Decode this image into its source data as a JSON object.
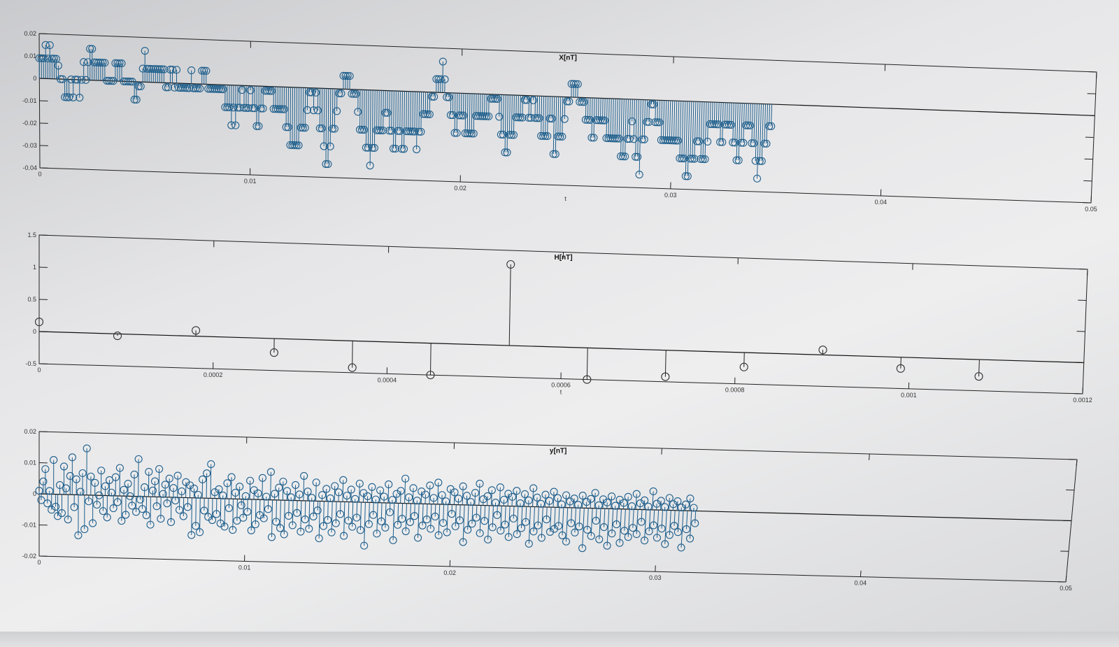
{
  "chart_data": [
    {
      "id": "x",
      "type": "stem",
      "title": "X[nT]",
      "xlabel": "t",
      "ylabel": "",
      "xlim": [
        0,
        0.05
      ],
      "ylim": [
        -0.04,
        0.02
      ],
      "xticks": [
        "0",
        "0.01",
        "0.02",
        "0.03",
        "0.04",
        "0.05"
      ],
      "yticks": [
        "0.02",
        "0.01",
        "0",
        "-0.01",
        "-0.02",
        "-0.03",
        "-0.04"
      ],
      "marker": "circle",
      "color": "#1f5f8c",
      "x_start": 0,
      "x_step": 0.0001,
      "values": [
        0.009,
        0.009,
        0.009,
        0.015,
        0.009,
        0.015,
        0.009,
        0.009,
        0.009,
        0.006,
        0.0,
        0.0,
        -0.008,
        -0.008,
        -0.008,
        0.0,
        -0.008,
        0.0,
        0.0,
        -0.008,
        0.0,
        0.008,
        0.0,
        0.008,
        0.014,
        0.014,
        0.008,
        0.008,
        0.008,
        0.008,
        0.008,
        0.008,
        0.0,
        0.0,
        0.0,
        0.0,
        0.008,
        0.008,
        0.008,
        0.008,
        0.0,
        0.0,
        0.0,
        0.0,
        0.0,
        -0.008,
        -0.008,
        -0.002,
        -0.002,
        0.006,
        0.014,
        0.006,
        0.006,
        0.006,
        0.006,
        0.006,
        0.006,
        0.006,
        0.006,
        0.006,
        -0.002,
        -0.002,
        0.006,
        0.006,
        -0.002,
        0.006,
        -0.002,
        -0.002,
        -0.002,
        -0.002,
        -0.002,
        -0.002,
        0.006,
        -0.002,
        -0.002,
        -0.002,
        -0.002,
        0.006,
        0.006,
        0.006,
        -0.002,
        -0.002,
        -0.002,
        -0.002,
        -0.002,
        -0.002,
        -0.002,
        -0.002,
        -0.01,
        -0.01,
        -0.01,
        -0.018,
        -0.01,
        -0.018,
        -0.01,
        -0.01,
        -0.002,
        -0.01,
        -0.01,
        -0.01,
        -0.002,
        -0.01,
        -0.01,
        -0.018,
        -0.018,
        -0.01,
        -0.01,
        -0.002,
        -0.002,
        -0.002,
        -0.002,
        -0.01,
        -0.01,
        -0.01,
        -0.01,
        -0.01,
        -0.01,
        -0.018,
        -0.018,
        -0.026,
        -0.026,
        -0.026,
        -0.026,
        -0.026,
        -0.018,
        -0.018,
        -0.018,
        -0.01,
        -0.002,
        -0.002,
        -0.01,
        -0.002,
        -0.01,
        -0.018,
        -0.018,
        -0.026,
        -0.034,
        -0.034,
        -0.026,
        -0.018,
        -0.018,
        -0.01,
        -0.002,
        -0.002,
        0.006,
        0.006,
        0.006,
        0.006,
        -0.002,
        -0.002,
        -0.002,
        -0.01,
        -0.018,
        -0.018,
        -0.018,
        -0.026,
        -0.026,
        -0.034,
        -0.026,
        -0.026,
        -0.018,
        -0.018,
        -0.018,
        -0.018,
        -0.01,
        -0.01,
        -0.018,
        -0.018,
        -0.026,
        -0.026,
        -0.018,
        -0.018,
        -0.026,
        -0.026,
        -0.018,
        -0.018,
        -0.018,
        -0.018,
        -0.018,
        -0.026,
        -0.018,
        -0.018,
        -0.01,
        -0.01,
        -0.01,
        -0.01,
        -0.002,
        -0.002,
        0.006,
        0.006,
        0.006,
        0.014,
        0.006,
        -0.002,
        -0.002,
        -0.01,
        -0.01,
        -0.018,
        -0.018,
        -0.01,
        -0.01,
        -0.01,
        -0.018,
        -0.018,
        -0.018,
        -0.018,
        -0.018,
        -0.01,
        -0.01,
        -0.01,
        -0.01,
        -0.01,
        -0.01,
        -0.01,
        -0.002,
        -0.002,
        -0.002,
        -0.002,
        -0.01,
        -0.018,
        -0.018,
        -0.026,
        -0.026,
        -0.018,
        -0.018,
        -0.018,
        -0.01,
        -0.01,
        -0.01,
        -0.01,
        -0.002,
        -0.002,
        -0.01,
        -0.01,
        -0.002,
        -0.01,
        -0.01,
        -0.01,
        -0.018,
        -0.018,
        -0.018,
        -0.018,
        -0.01,
        -0.01,
        -0.026,
        -0.026,
        -0.018,
        -0.018,
        -0.018,
        -0.01,
        -0.002,
        -0.002,
        0.006,
        0.006,
        0.006,
        0.006,
        -0.002,
        -0.002,
        -0.002,
        -0.01,
        -0.01,
        -0.01,
        -0.018,
        -0.018,
        -0.01,
        -0.01,
        -0.01,
        -0.01,
        -0.01,
        -0.018,
        -0.018,
        -0.018,
        -0.018,
        -0.018,
        -0.018,
        -0.018,
        -0.026,
        -0.026,
        -0.026,
        -0.018,
        -0.018,
        -0.01,
        -0.018,
        -0.026,
        -0.026,
        -0.034,
        -0.018,
        -0.018,
        -0.01,
        -0.01,
        -0.002,
        -0.002,
        -0.01,
        -0.01,
        -0.01,
        -0.018,
        -0.018,
        -0.018,
        -0.018,
        -0.018,
        -0.018,
        -0.018,
        -0.018,
        -0.018,
        -0.026,
        -0.026,
        -0.026,
        -0.034,
        -0.034,
        -0.026,
        -0.026,
        -0.026,
        -0.018,
        -0.018,
        -0.026,
        -0.026,
        -0.026,
        -0.018,
        -0.01,
        -0.01,
        -0.01,
        -0.01,
        -0.01,
        -0.018,
        -0.018,
        -0.01,
        -0.01,
        -0.01,
        -0.01,
        -0.018,
        -0.018,
        -0.026,
        -0.026,
        -0.018,
        -0.018,
        -0.01,
        -0.01,
        -0.01,
        -0.018,
        -0.018,
        -0.026,
        -0.034,
        -0.026,
        -0.026,
        -0.018,
        -0.018,
        -0.01,
        -0.01
      ]
    },
    {
      "id": "h",
      "type": "stem",
      "title": "H[nT]",
      "xlabel": "t",
      "ylabel": "",
      "xlim": [
        0,
        0.0012
      ],
      "ylim": [
        -0.5,
        1.5
      ],
      "xticks": [
        "0",
        "0.0002",
        "0.0004",
        "0.0006",
        "0.0008",
        "0.001",
        "0.0012"
      ],
      "yticks": [
        "1.5",
        "1",
        "0.5",
        "0",
        "-0.5"
      ],
      "marker": "circle",
      "color": "#333333",
      "x": [
        0.0,
        9e-05,
        0.00018,
        0.00027,
        0.00036,
        0.00045,
        0.00054,
        0.00063,
        0.00072,
        0.00081,
        0.0009,
        0.00099,
        0.00108
      ],
      "values": [
        0.15,
        -0.03,
        0.09,
        -0.22,
        -0.42,
        -0.6,
        1.28,
        -0.62,
        -0.42,
        -0.23,
        0.08,
        -0.18,
        -0.27
      ]
    },
    {
      "id": "y",
      "type": "stem",
      "title": "y[nT]",
      "xlabel": "",
      "ylabel": "",
      "xlim": [
        0,
        0.05
      ],
      "ylim": [
        -0.02,
        0.02
      ],
      "xticks": [
        "0",
        "0.01",
        "0.02",
        "0.03",
        "0.04",
        "0.05"
      ],
      "yticks": [
        "0.02",
        "0.01",
        "0",
        "-0.01",
        "-0.02"
      ],
      "marker": "circle",
      "color": "#1f5f8c",
      "x_start": 0,
      "x_step": 0.0001,
      "values": [
        0.001,
        -0.002,
        0.004,
        0.008,
        -0.003,
        0.001,
        -0.005,
        0.011,
        -0.004,
        -0.007,
        0.003,
        -0.006,
        0.009,
        0.002,
        -0.008,
        0.006,
        0.012,
        -0.004,
        0.005,
        -0.013,
        0.001,
        0.007,
        -0.011,
        0.015,
        -0.002,
        0.006,
        -0.009,
        0.004,
        -0.003,
        0.0,
        0.008,
        -0.005,
        0.003,
        -0.007,
        0.005,
        0.001,
        -0.004,
        0.006,
        -0.002,
        0.009,
        -0.008,
        0.002,
        -0.006,
        0.004,
        0.0,
        -0.003,
        0.007,
        -0.005,
        0.012,
        -0.001,
        -0.004,
        0.003,
        -0.006,
        0.008,
        -0.009,
        0.002,
        0.005,
        -0.003,
        0.009,
        -0.007,
        0.001,
        0.004,
        -0.002,
        0.006,
        -0.008,
        0.003,
        -0.001,
        0.007,
        -0.004,
        0.002,
        -0.006,
        0.005,
        -0.003,
        0.004,
        -0.012,
        0.003,
        -0.009,
        0.001,
        -0.011,
        0.006,
        -0.004,
        0.008,
        -0.006,
        0.011,
        -0.007,
        0.002,
        -0.005,
        0.003,
        -0.008,
        0.001,
        -0.009,
        0.005,
        -0.003,
        0.007,
        -0.01,
        0.002,
        -0.007,
        0.004,
        -0.002,
        -0.006,
        0.001,
        -0.004,
        0.006,
        -0.01,
        0.003,
        -0.008,
        0.002,
        -0.005,
        0.007,
        -0.006,
        0.001,
        -0.003,
        0.009,
        -0.012,
        0.002,
        -0.007,
        0.004,
        -0.009,
        0.006,
        -0.011,
        0.003,
        -0.005,
        0.001,
        -0.008,
        0.005,
        -0.004,
        0.002,
        -0.01,
        0.008,
        -0.006,
        0.003,
        -0.009,
        0.001,
        -0.005,
        0.006,
        -0.003,
        -0.012,
        0.002,
        -0.008,
        0.004,
        -0.006,
        0.001,
        -0.01,
        0.005,
        -0.007,
        0.003,
        -0.004,
        0.007,
        -0.011,
        0.002,
        -0.006,
        0.004,
        -0.008,
        0.001,
        -0.005,
        0.006,
        -0.009,
        0.003,
        -0.014,
        0.002,
        -0.007,
        0.005,
        -0.004,
        0.001,
        -0.01,
        0.004,
        -0.006,
        0.002,
        -0.008,
        0.006,
        -0.003,
        0.001,
        -0.012,
        0.003,
        -0.007,
        0.004,
        -0.005,
        0.008,
        -0.009,
        0.002,
        -0.006,
        0.005,
        -0.004,
        0.001,
        -0.011,
        0.004,
        -0.007,
        0.003,
        -0.005,
        0.006,
        -0.008,
        0.002,
        -0.004,
        0.007,
        -0.01,
        0.003,
        -0.006,
        0.001,
        -0.009,
        0.005,
        -0.003,
        0.004,
        -0.007,
        0.002,
        -0.005,
        0.006,
        -0.012,
        0.003,
        -0.008,
        0.001,
        -0.006,
        0.004,
        -0.004,
        0.007,
        -0.009,
        0.002,
        -0.005,
        0.003,
        -0.011,
        0.005,
        -0.007,
        0.001,
        -0.003,
        0.006,
        -0.008,
        0.002,
        -0.006,
        0.004,
        -0.01,
        0.003,
        -0.004,
        0.005,
        -0.009,
        0.001,
        -0.007,
        0.004,
        -0.005,
        0.002,
        -0.012,
        0.006,
        -0.008,
        0.003,
        -0.006,
        0.001,
        -0.01,
        0.004,
        -0.004,
        0.002,
        -0.008,
        0.005,
        -0.007,
        0.003,
        -0.006,
        0.001,
        -0.009,
        0.004,
        -0.011,
        0.002,
        -0.005,
        0.003,
        -0.008,
        0.001,
        -0.006,
        0.004,
        -0.013,
        0.002,
        -0.007,
        0.003,
        -0.009,
        0.005,
        -0.004,
        0.001,
        -0.01,
        0.003,
        -0.006,
        0.002,
        -0.012,
        0.004,
        -0.008,
        0.001,
        -0.005,
        0.003,
        -0.011,
        0.002,
        -0.007,
        0.004,
        -0.009,
        0.001,
        -0.006,
        0.005,
        -0.008,
        0.002,
        -0.004,
        0.003,
        -0.01,
        0.001,
        -0.007,
        0.006,
        -0.005,
        0.002,
        -0.009,
        0.003,
        -0.006,
        0.001,
        -0.011,
        0.004,
        -0.008,
        0.002,
        -0.005,
        0.003,
        -0.007,
        0.001,
        -0.012,
        0.002,
        -0.006,
        0.004,
        -0.009,
        0.001,
        -0.004
      ]
    }
  ]
}
